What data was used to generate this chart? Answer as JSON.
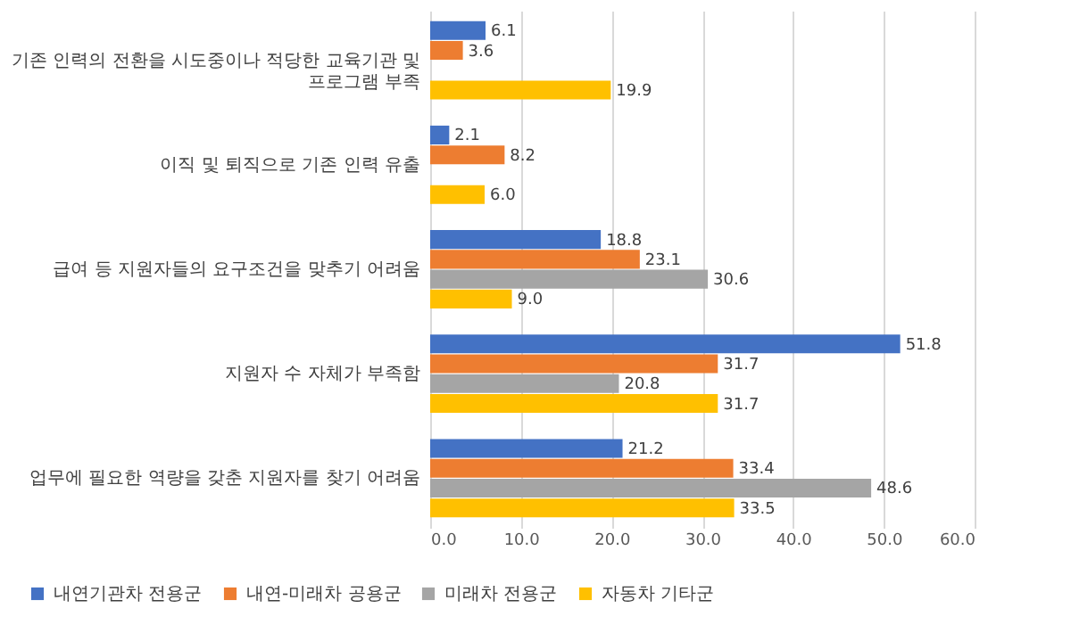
{
  "chart_data": {
    "type": "bar",
    "orientation": "horizontal",
    "categories": [
      "기존 인력의 전환을 시도중이나 적당한 교육기관 및\n프로그램 부족",
      "이직 및 퇴직으로 기존 인력 유출",
      "급여 등 지원자들의 요구조건을 맞추기 어려움",
      "지원자 수 자체가 부족함",
      "업무에 필요한 역량을 갖춘 지원자를 찾기 어려움"
    ],
    "series": [
      {
        "name": "내연기관차 전용군",
        "color": "#4472c4",
        "values": [
          6.1,
          2.1,
          18.8,
          51.8,
          21.2
        ],
        "value_labels": [
          "6.1",
          "2.1",
          "18.8",
          "51.8",
          "21.2"
        ]
      },
      {
        "name": "내연-미래차 공용군",
        "color": "#ed7d31",
        "values": [
          3.6,
          8.2,
          23.1,
          31.7,
          33.4
        ],
        "value_labels": [
          "3.6",
          "8.2",
          "23.1",
          "31.7",
          "33.4"
        ]
      },
      {
        "name": "미래차 전용군",
        "color": "#a5a5a5",
        "values": [
          null,
          null,
          30.6,
          20.8,
          48.6
        ],
        "value_labels": [
          null,
          null,
          "30.6",
          "20.8",
          "48.6"
        ]
      },
      {
        "name": "자동차 기타군",
        "color": "#ffc000",
        "values": [
          19.9,
          6.0,
          9.0,
          31.7,
          33.5
        ],
        "value_labels": [
          "19.9",
          "6.0",
          "9.0",
          "31.7",
          "33.5"
        ]
      }
    ],
    "xlim": [
      0,
      60
    ],
    "xticks": [
      {
        "value": 0,
        "label": "0.0"
      },
      {
        "value": 10,
        "label": "10.0"
      },
      {
        "value": 20,
        "label": "20.0"
      },
      {
        "value": 30,
        "label": "30.0"
      },
      {
        "value": 40,
        "label": "40.0"
      },
      {
        "value": 50,
        "label": "50.0"
      },
      {
        "value": 60,
        "label": "60.0"
      }
    ],
    "grid": "x",
    "legend": "bottom"
  }
}
